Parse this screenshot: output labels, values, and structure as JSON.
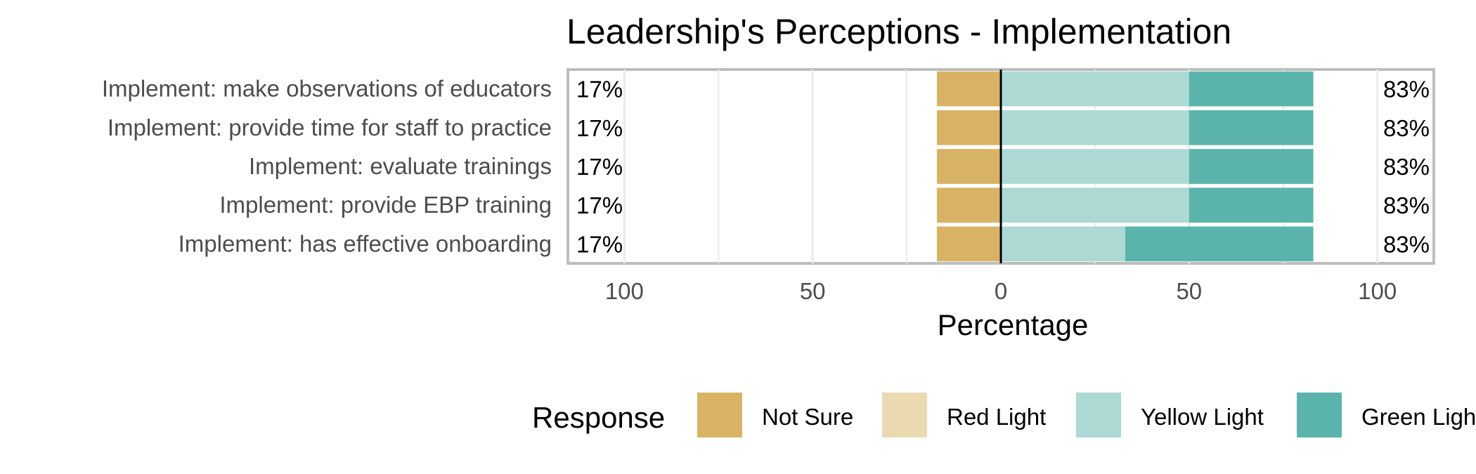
{
  "chart_data": {
    "type": "bar",
    "orientation": "horizontal",
    "stacking": "diverging",
    "title": "Leadership's Perceptions - Implementation",
    "xlabel": "Percentage",
    "ylabel": "",
    "xlim": [
      -115,
      115
    ],
    "x_ticks": [
      -100,
      -50,
      0,
      50,
      100
    ],
    "x_tick_labels": [
      "100",
      "50",
      "0",
      "50",
      "100"
    ],
    "grid": true,
    "categories": [
      "Implement: make observations of educators",
      "Implement: provide time for staff to practice",
      "Implement: evaluate trainings",
      "Implement: provide EBP training",
      "Implement: has effective onboarding"
    ],
    "series": [
      {
        "name": "Not Sure",
        "color": "#d8b365",
        "side": "negative",
        "values": [
          17,
          17,
          17,
          17,
          17
        ]
      },
      {
        "name": "Red Light",
        "color": "#ebdab1",
        "side": "negative",
        "values": [
          0,
          0,
          0,
          0,
          0
        ]
      },
      {
        "name": "Yellow Light",
        "color": "#acd9d4",
        "side": "positive",
        "values": [
          50,
          50,
          50,
          50,
          33
        ]
      },
      {
        "name": "Green Light",
        "color": "#5ab4ac",
        "side": "positive",
        "values": [
          33,
          33,
          33,
          33,
          50
        ]
      }
    ],
    "left_labels": [
      "17%",
      "17%",
      "17%",
      "17%",
      "17%"
    ],
    "right_labels": [
      "83%",
      "83%",
      "83%",
      "83%",
      "83%"
    ],
    "legend": {
      "title": "Response",
      "position": "bottom"
    }
  }
}
